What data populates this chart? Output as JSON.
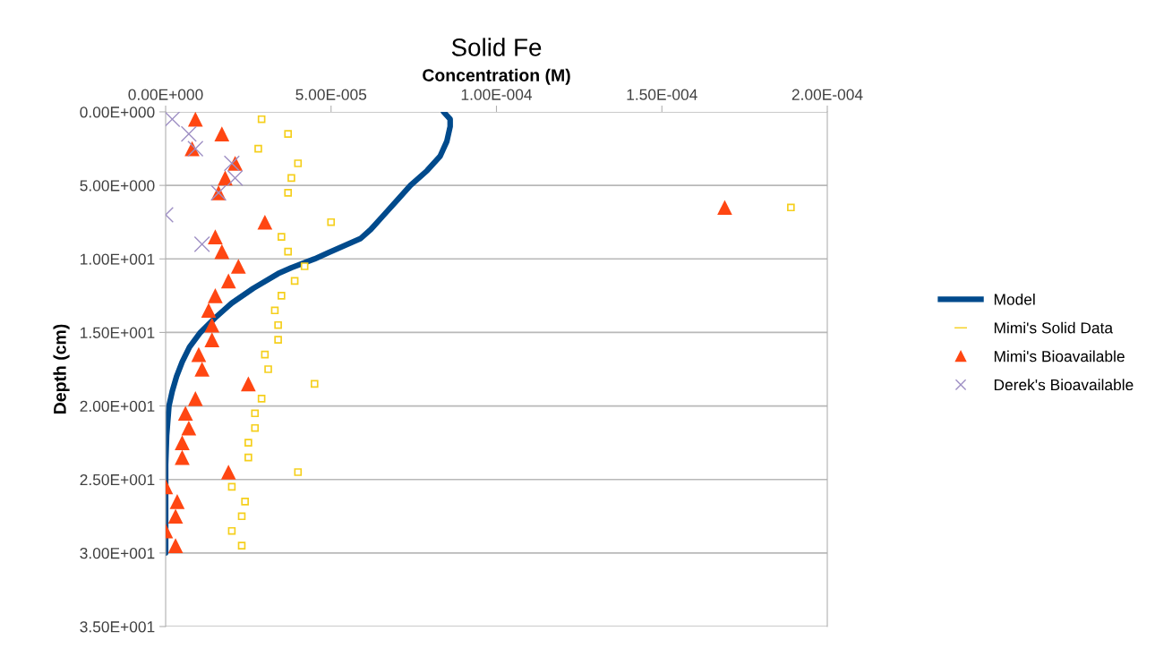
{
  "chart_data": {
    "type": "scatter",
    "title": "Solid Fe",
    "xlabel": "Concentration (M)",
    "ylabel": "Depth (cm)",
    "xlim": [
      0,
      0.0002
    ],
    "xticks": [
      {
        "value": 0,
        "label": "0.00E+000"
      },
      {
        "value": 5e-05,
        "label": "5.00E-005"
      },
      {
        "value": 0.0001,
        "label": "1.00E-004"
      },
      {
        "value": 0.00015,
        "label": "1.50E-004"
      },
      {
        "value": 0.0002,
        "label": "2.00E-004"
      }
    ],
    "ylim": [
      35,
      0
    ],
    "yticks": [
      {
        "value": 0,
        "label": "0.00E+000"
      },
      {
        "value": 5,
        "label": "5.00E+000"
      },
      {
        "value": 10,
        "label": "1.00E+001"
      },
      {
        "value": 15,
        "label": "1.50E+001"
      },
      {
        "value": 20,
        "label": "2.00E+001"
      },
      {
        "value": 25,
        "label": "2.50E+001"
      },
      {
        "value": 30,
        "label": "3.00E+001"
      },
      {
        "value": 35,
        "label": "3.50E+001"
      }
    ],
    "grid": "y",
    "legend": "right",
    "series": [
      {
        "name": "Model",
        "type": "line",
        "color": "#004a8c",
        "marker": "none",
        "line_style": "solid",
        "x": [
          8.4e-05,
          8.6e-05,
          8.6e-05,
          8.5e-05,
          8.3e-05,
          7.9e-05,
          7.4e-05,
          7e-05,
          6.6e-05,
          6.2e-05,
          5.9e-05,
          5.5e-05,
          4.9e-05,
          4.5e-05,
          3.8e-05,
          3.4e-05,
          2.65e-05,
          2e-05,
          1.5e-05,
          1.05e-05,
          7.2e-06,
          5e-06,
          3.3e-06,
          2e-06,
          1e-06,
          3e-07,
          0,
          0
        ],
        "values": [
          0,
          0.5,
          1,
          2,
          3,
          4,
          5,
          6,
          7,
          8,
          8.6,
          9,
          9.6,
          10,
          10.6,
          11,
          12,
          13,
          14,
          15,
          16,
          17,
          18,
          19,
          20,
          22,
          24,
          30
        ]
      },
      {
        "name": "Mimi's Solid Data",
        "color": "#f5cf1c",
        "marker": "square",
        "x": [
          2.9e-05,
          3.7e-05,
          2.8e-05,
          4e-05,
          3.8e-05,
          3.7e-05,
          0.000189,
          5e-05,
          3.5e-05,
          3.7e-05,
          4.2e-05,
          3.9e-05,
          3.5e-05,
          3.3e-05,
          3.4e-05,
          3.4e-05,
          3e-05,
          3.1e-05,
          4.5e-05,
          2.9e-05,
          2.7e-05,
          2.7e-05,
          2.5e-05,
          2.5e-05,
          4e-05,
          2e-05,
          2.4e-05,
          2.3e-05,
          2e-05,
          2.3e-05
        ],
        "values": [
          0.5,
          1.5,
          2.5,
          3.5,
          4.5,
          5.5,
          6.5,
          7.5,
          8.5,
          9.5,
          10.5,
          11.5,
          12.5,
          13.5,
          14.5,
          15.5,
          16.5,
          17.5,
          18.5,
          19.5,
          20.5,
          21.5,
          22.5,
          23.5,
          24.5,
          25.5,
          26.5,
          27.5,
          28.5,
          29.5
        ]
      },
      {
        "name": "Mimi's Bioavailable",
        "color": "#ff4612",
        "marker": "triangle",
        "x": [
          9e-06,
          1.7e-05,
          8e-06,
          2.1e-05,
          1.8e-05,
          1.6e-05,
          0.000169,
          3e-05,
          1.5e-05,
          1.7e-05,
          2.2e-05,
          1.9e-05,
          1.5e-05,
          1.3e-05,
          1.4e-05,
          1.4e-05,
          1e-05,
          1.1e-05,
          2.5e-05,
          9e-06,
          6e-06,
          7e-06,
          5e-06,
          5e-06,
          1.9e-05,
          0,
          3.5e-06,
          3e-06,
          0,
          3e-06
        ],
        "values": [
          0.5,
          1.5,
          2.5,
          3.5,
          4.5,
          5.5,
          6.5,
          7.5,
          8.5,
          9.5,
          10.5,
          11.5,
          12.5,
          13.5,
          14.5,
          15.5,
          16.5,
          17.5,
          18.5,
          19.5,
          20.5,
          21.5,
          22.5,
          23.5,
          24.5,
          25.5,
          26.5,
          27.5,
          28.5,
          29.5
        ]
      },
      {
        "name": "Derek's Bioavailable",
        "color": "#9e8fc4",
        "marker": "cross",
        "x": [
          2e-06,
          7e-06,
          9e-06,
          2e-05,
          2.1e-05,
          1.6e-05,
          0,
          1.1e-05
        ],
        "values": [
          0.5,
          1.5,
          2.5,
          3.5,
          4.5,
          5.5,
          7,
          9
        ]
      }
    ]
  }
}
